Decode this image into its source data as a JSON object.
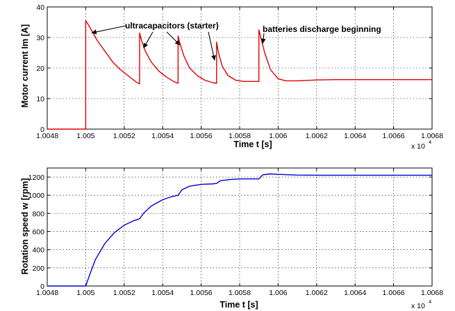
{
  "chart_data": [
    {
      "type": "line",
      "xlabel": "Time t [s]",
      "ylabel": "Motor current Im [A]",
      "x_multiplier": "x 10",
      "x_multiplier_exp": "4",
      "xlim": [
        1.0048,
        1.0068
      ],
      "ylim": [
        0,
        40
      ],
      "xticks": [
        "1.0048",
        "1.005",
        "1.0052",
        "1.0054",
        "1.0056",
        "1.0058",
        "1.006",
        "1.0062",
        "1.0064",
        "1.0066",
        "1.0068"
      ],
      "yticks": [
        "0",
        "10",
        "20",
        "30",
        "40"
      ],
      "grid": true,
      "color": "#dd0000",
      "series": [
        {
          "x": [
            1.0048,
            1.005,
            1.005,
            1.00502,
            1.00506,
            1.0051,
            1.00514,
            1.00518,
            1.00522,
            1.00526,
            1.00528,
            1.00528,
            1.00529,
            1.00531,
            1.00534,
            1.00538,
            1.00542,
            1.00546,
            1.00548,
            1.00548,
            1.00549,
            1.00551,
            1.00554,
            1.00558,
            1.00562,
            1.00566,
            1.00568,
            1.00568,
            1.00569,
            1.00571,
            1.00574,
            1.00578,
            1.00582,
            1.00586,
            1.0059,
            1.0059,
            1.00591,
            1.00593,
            1.00596,
            1.006,
            1.00604,
            1.0061,
            1.0062,
            1.0063,
            1.0068
          ],
          "y": [
            0,
            0,
            35.5,
            33.5,
            29,
            25.5,
            22,
            19.5,
            17.5,
            15.5,
            14.8,
            31.5,
            29,
            25.5,
            22,
            19,
            17,
            15.5,
            15,
            30.5,
            28,
            24,
            20,
            17.5,
            16,
            15.2,
            15,
            28.5,
            25,
            20.5,
            17.5,
            16,
            15.6,
            15.6,
            15.6,
            32.5,
            30,
            25,
            19.5,
            16.5,
            15.8,
            15.8,
            16.1,
            16.2,
            16.2
          ]
        }
      ],
      "annotations": [
        {
          "text": "ultracapacitors (starter)"
        },
        {
          "text": "batteries discharge beginning"
        }
      ]
    },
    {
      "type": "line",
      "xlabel": "Time t [s]",
      "ylabel": "Rotation speed w [rpm]",
      "x_multiplier": "x 10",
      "x_multiplier_exp": "4",
      "xlim": [
        1.0048,
        1.0068
      ],
      "ylim": [
        0,
        1300
      ],
      "xticks": [
        "1.0048",
        "1.005",
        "1.0052",
        "1.0054",
        "1.0056",
        "1.0058",
        "1.006",
        "1.0062",
        "1.0064",
        "1.0066",
        "1.0068"
      ],
      "yticks": [
        "0",
        "200",
        "400",
        "600",
        "800",
        "1000",
        "1200"
      ],
      "grid": true,
      "color": "#0000cc",
      "series": [
        {
          "x": [
            1.0048,
            1.005,
            1.00502,
            1.00505,
            1.0051,
            1.00515,
            1.0052,
            1.00525,
            1.00528,
            1.0053,
            1.00534,
            1.0054,
            1.00544,
            1.00548,
            1.0055,
            1.00554,
            1.0056,
            1.00566,
            1.00568,
            1.0057,
            1.00576,
            1.00582,
            1.0059,
            1.00592,
            1.00596,
            1.006,
            1.0061,
            1.0062,
            1.0068
          ],
          "y": [
            0,
            0,
            120,
            290,
            470,
            590,
            670,
            720,
            740,
            800,
            880,
            950,
            980,
            1000,
            1060,
            1100,
            1120,
            1125,
            1130,
            1160,
            1175,
            1180,
            1180,
            1225,
            1235,
            1230,
            1222,
            1220,
            1220
          ]
        }
      ]
    }
  ]
}
